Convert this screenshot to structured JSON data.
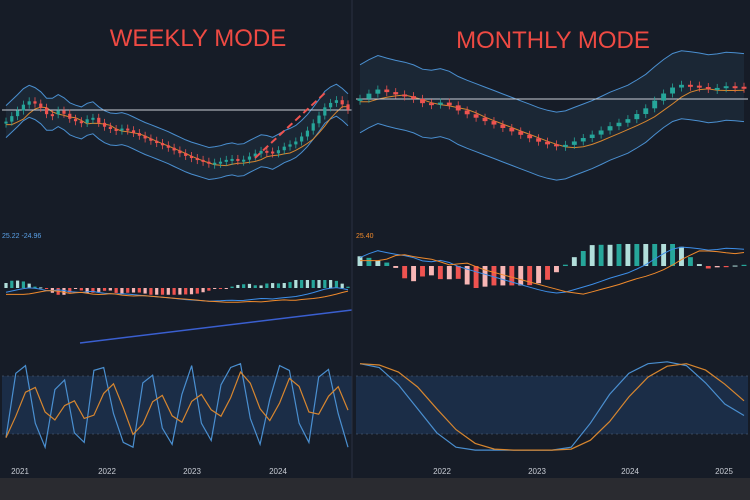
{
  "colors": {
    "background": "#161c27",
    "title": "#ee4a43",
    "bollinger": "#4a8fd0",
    "bollinger_fill": "#1d2a3a",
    "ma": "#d7862f",
    "bull": "#26a69a",
    "bear": "#ef5350",
    "bull_light": "#b2dfdb",
    "bear_light": "#f7b6b5",
    "macd": "#3d8ee8",
    "signal": "#f08a2c",
    "stoch_k": "#4a8fd0",
    "stoch_d": "#d7862f",
    "stoch_band": "#1e3555",
    "reference_line": "#c9ced6",
    "trend_dashed": "#ef5350",
    "trend_blue": "#3a5fd0"
  },
  "chart_data": [
    {
      "panel": "weekly",
      "title": "WEEKLY MODE",
      "type": "candlestick",
      "x_tick_labels": [
        "2021",
        "2022",
        "2023",
        "2024"
      ],
      "indicator_readout": "25.22 -24.96",
      "price_path": [
        0.6,
        0.72,
        0.85,
        0.8,
        0.66,
        0.74,
        0.63,
        0.58,
        0.66,
        0.55,
        0.5,
        0.52,
        0.46,
        0.4,
        0.35,
        0.3,
        0.24,
        0.18,
        0.14,
        0.1,
        0.12,
        0.16,
        0.13,
        0.2,
        0.26,
        0.22,
        0.3,
        0.35,
        0.46,
        0.62,
        0.8,
        0.86,
        0.74
      ],
      "overlays": [
        "bollinger bands",
        "moving average"
      ],
      "sub_panels": [
        "macd histogram",
        "stochastic oscillator"
      ],
      "stochastic_k": [
        0.15,
        0.82,
        0.9,
        0.3,
        0.05,
        0.65,
        0.75,
        0.2,
        0.1,
        0.85,
        0.88,
        0.4,
        0.1,
        0.05,
        0.72,
        0.8,
        0.25,
        0.08,
        0.6,
        0.9,
        0.3,
        0.12,
        0.7,
        0.88,
        0.92,
        0.35,
        0.08,
        0.55,
        0.9,
        0.85,
        0.3,
        0.1,
        0.78,
        0.86,
        0.4,
        0.05
      ]
    },
    {
      "panel": "monthly",
      "title": "MONTHLY MODE",
      "type": "candlestick",
      "x_tick_labels": [
        "2022",
        "2023",
        "2024",
        "2025"
      ],
      "indicator_readout": "25.40",
      "price_path": [
        0.74,
        0.86,
        0.8,
        0.76,
        0.66,
        0.7,
        0.58,
        0.5,
        0.42,
        0.34,
        0.26,
        0.18,
        0.14,
        0.22,
        0.3,
        0.4,
        0.48,
        0.6,
        0.78,
        0.92,
        0.9,
        0.86,
        0.9,
        0.88
      ],
      "overlays": [
        "bollinger bands",
        "moving average"
      ],
      "sub_panels": [
        "macd histogram",
        "stochastic oscillator"
      ],
      "stochastic_k": [
        0.92,
        0.88,
        0.7,
        0.45,
        0.2,
        0.05,
        0.02,
        0.02,
        0.02,
        0.02,
        0.02,
        0.05,
        0.3,
        0.6,
        0.82,
        0.92,
        0.94,
        0.9,
        0.72,
        0.5,
        0.38
      ]
    }
  ]
}
